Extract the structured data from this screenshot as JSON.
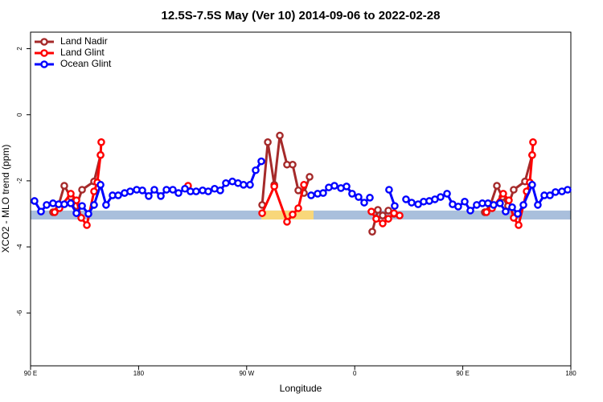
{
  "chart_data": {
    "type": "line",
    "title": "12.5S-7.5S May (Ver 10)   2014-09-06 to 2022-02-28",
    "xlabel": "Longitude",
    "ylabel": "XCO2 - MLO trend (ppm)",
    "xlim": [
      90,
      540
    ],
    "ylim": [
      -7.6,
      2.5
    ],
    "xticks": [
      {
        "value": 90,
        "label": "90 E"
      },
      {
        "value": 180,
        "label": "180"
      },
      {
        "value": 270,
        "label": "90 W"
      },
      {
        "value": 360,
        "label": "0"
      },
      {
        "value": 450,
        "label": "90 E"
      },
      {
        "value": 540,
        "label": "180"
      }
    ],
    "yticks": [
      2,
      0,
      -2,
      -4,
      -6
    ],
    "legend": "topleft",
    "band": {
      "ylim": [
        -2.9,
        -3.17
      ],
      "color": "#a9bfdc",
      "segments": [
        {
          "xlim": [
            282.2,
            325.7
          ],
          "color": "#f8d77a"
        }
      ]
    },
    "series": [
      {
        "name": "Land Nadir",
        "color": "#a52a2a",
        "x": [
          108.7,
          113.4,
          118.1,
          123.5,
          128.2,
          132.9,
          142.9,
          148.3,
          null,
          282.9,
          287.6,
          293,
          297.6,
          303.6,
          308.3,
          313,
          317.7,
          322.4,
          null,
          374.6,
          379.3,
          383.3,
          388,
          392.7,
          null,
          468.3,
          473,
          478.4,
          483,
          487.7,
          492.4,
          501.8,
          507.8
        ],
        "values": [
          -2.95,
          -2.73,
          -2.15,
          -2.49,
          -2.76,
          -2.27,
          -2.02,
          -1.22,
          null,
          -2.73,
          -0.83,
          -2.12,
          -0.63,
          -1.51,
          -1.51,
          -2.29,
          -2.37,
          -1.88,
          null,
          -3.54,
          -2.88,
          -3.05,
          -2.9,
          -3.0,
          null,
          -2.95,
          -2.73,
          -2.15,
          -2.49,
          -2.76,
          -2.27,
          -2.02,
          -1.22
        ]
      },
      {
        "name": "Land Glint",
        "color": "#ff0000",
        "x": [
          110.1,
          114.1,
          123.5,
          128.2,
          132.2,
          136.9,
          142.9,
          145.6,
          148.3,
          148.9,
          null,
          221.2,
          null,
          282.9,
          293,
          303.6,
          308.3,
          313,
          317.7,
          null,
          373.9,
          377.9,
          383.3,
          388,
          392.7,
          397.4,
          null,
          469.7,
          474.4,
          483.7,
          488.4,
          492.4,
          496.5,
          503.2,
          505.8,
          507.8,
          508.5
        ],
        "values": [
          -2.95,
          -2.83,
          -2.39,
          -2.59,
          -3.12,
          -3.34,
          -2.32,
          -2.05,
          -1.22,
          -0.83,
          null,
          -2.15,
          null,
          -2.98,
          -2.17,
          -3.24,
          -3.02,
          -2.83,
          -2.12,
          null,
          -2.93,
          -3.15,
          -3.29,
          -3.15,
          -2.98,
          -3.05,
          null,
          -2.95,
          -2.83,
          -2.39,
          -2.59,
          -3.12,
          -3.34,
          -2.32,
          -2.05,
          -1.22,
          -0.83
        ]
      },
      {
        "name": "Ocean Glint",
        "color": "#0000ff",
        "x": [
          93.3,
          98.7,
          103.4,
          108.7,
          113.4,
          118.1,
          123.5,
          128.2,
          132.9,
          138.2,
          142.9,
          148.3,
          152.9,
          158.3,
          163.0,
          168.3,
          173.0,
          178.4,
          183.1,
          188.4,
          193.1,
          198.5,
          203.2,
          208.5,
          213.2,
          218.6,
          223.2,
          227.9,
          233.3,
          238.0,
          243.3,
          248.0,
          252.7,
          258.1,
          262.8,
          267.4,
          272.8,
          277.5,
          282.2,
          null,
          323.7,
          329.1,
          333.7,
          338.4,
          343.1,
          348.5,
          353.2,
          357.8,
          363.2,
          367.9,
          372.6,
          null,
          388.6,
          393.3,
          null,
          402.7,
          407.4,
          412.8,
          417.4,
          422.1,
          426.8,
          431.5,
          436.9,
          441.5,
          446.2,
          451.6,
          456.3,
          461.6,
          466.3,
          471.0,
          475.7,
          481.0,
          485.7,
          491.1,
          495.8,
          500.5,
          507.8,
          512.5,
          517.9,
          522.6,
          527.2,
          532.6,
          537.3
        ],
        "values": [
          -2.61,
          -2.93,
          -2.73,
          -2.68,
          -2.71,
          -2.71,
          -2.68,
          -2.98,
          -2.76,
          -3.0,
          -2.73,
          -2.12,
          -2.73,
          -2.44,
          -2.44,
          -2.37,
          -2.32,
          -2.27,
          -2.29,
          -2.46,
          -2.27,
          -2.46,
          -2.27,
          -2.27,
          -2.37,
          -2.24,
          -2.32,
          -2.32,
          -2.29,
          -2.32,
          -2.24,
          -2.29,
          -2.07,
          -2.02,
          -2.07,
          -2.12,
          -2.12,
          -1.68,
          -1.41,
          null,
          -2.44,
          -2.39,
          -2.37,
          -2.2,
          -2.15,
          -2.22,
          -2.17,
          -2.39,
          -2.49,
          -2.66,
          -2.51,
          null,
          -2.27,
          -2.76,
          null,
          -2.56,
          -2.66,
          -2.71,
          -2.63,
          -2.61,
          -2.56,
          -2.49,
          -2.39,
          -2.71,
          -2.78,
          -2.63,
          -2.9,
          -2.73,
          -2.68,
          -2.68,
          -2.73,
          -2.68,
          -2.93,
          -2.8,
          -3.0,
          -2.73,
          -2.12,
          -2.73,
          -2.44,
          -2.44,
          -2.34,
          -2.32,
          -2.27
        ]
      }
    ]
  }
}
